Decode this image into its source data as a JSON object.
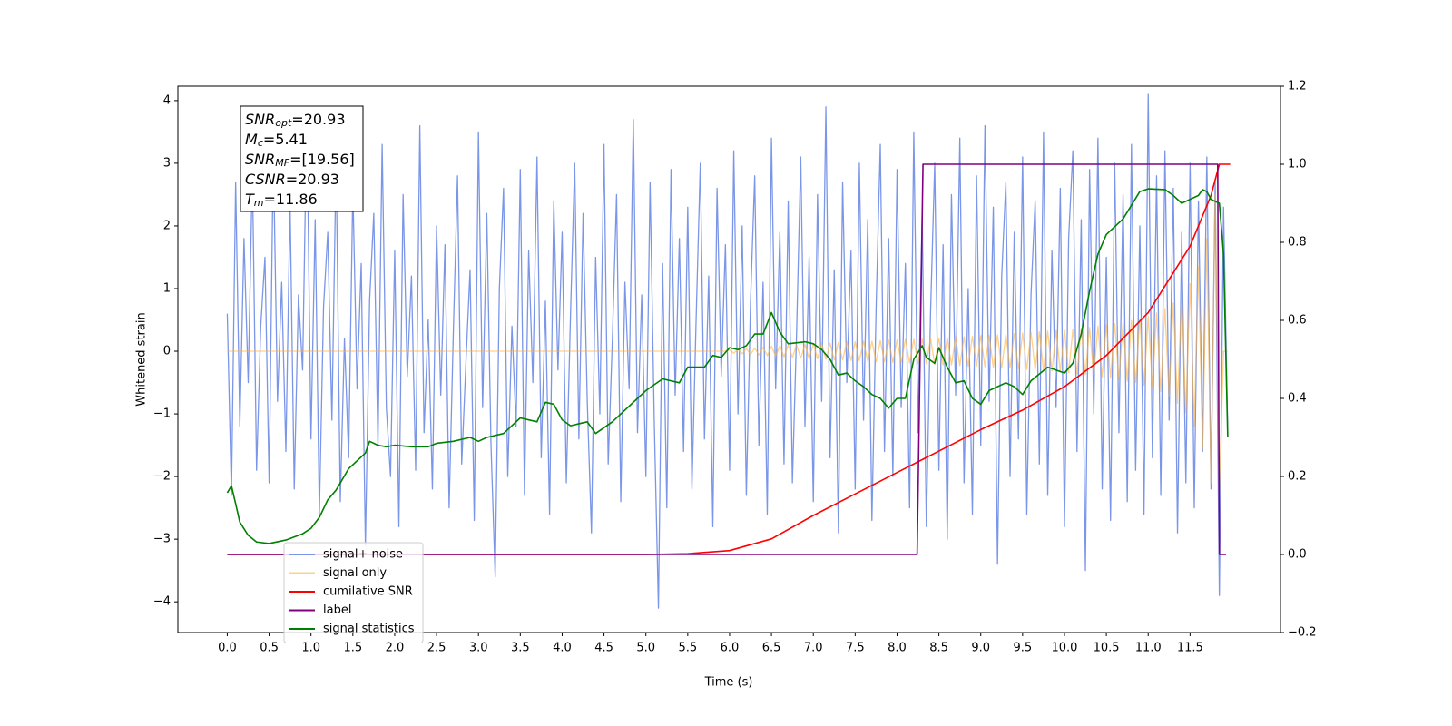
{
  "chart_data": {
    "type": "line",
    "xlabel": "Time (s)",
    "ylabel": "Whitened strain",
    "xlim": [
      -0.59,
      12.58
    ],
    "ylim": [
      -4.49,
      4.23
    ],
    "y2lim": [
      -0.2,
      1.2
    ],
    "xticks": [
      {
        "value": 0,
        "label": "0.0"
      },
      0.5,
      {
        "value": 1,
        "label": "1.0"
      },
      1.5,
      {
        "value": 2,
        "label": "2.0"
      },
      2.5,
      {
        "value": 3,
        "label": "3.0"
      },
      3.5,
      {
        "value": 4,
        "label": "4.0"
      },
      4.5,
      {
        "value": 5,
        "label": "5.0"
      },
      5.5,
      {
        "value": 6,
        "label": "6.0"
      },
      6.5,
      {
        "value": 7,
        "label": "7.0"
      },
      7.5,
      {
        "value": 8,
        "label": "8.0"
      },
      8.5,
      {
        "value": 9,
        "label": "9.0"
      },
      9.5,
      {
        "value": 10,
        "label": "10.0"
      },
      10.5,
      {
        "value": 11,
        "label": "11.0"
      },
      11.5
    ],
    "yticks": [
      {
        "value": -4,
        "label": "−4"
      },
      {
        "value": -3,
        "label": "−3"
      },
      {
        "value": -2,
        "label": "−2"
      },
      {
        "value": -1,
        "label": "−1"
      },
      0,
      1,
      2,
      3,
      4
    ],
    "y2ticks": [
      {
        "value": -0.2,
        "label": "−0.2"
      },
      {
        "value": 0,
        "label": "0.0"
      },
      0.2,
      0.4,
      0.6,
      0.8,
      {
        "value": 1,
        "label": "1.0"
      },
      1.2
    ],
    "grid": false,
    "legend": "lower left",
    "annotations": [
      {
        "symbol": "SNR",
        "subscript": "opt",
        "value": "=20.93"
      },
      {
        "symbol": "M",
        "subscript": "c",
        "value": "=5.41"
      },
      {
        "symbol": "SNR",
        "subscript": "MF",
        "value": "=[19.56]"
      },
      {
        "symbol": "CSNR",
        "value": "=20.93"
      },
      {
        "symbol": "T",
        "subscript": "m",
        "value": "=11.86"
      }
    ],
    "x": [
      0,
      0.05,
      0.1,
      0.15,
      0.2,
      0.25,
      0.3,
      0.35,
      0.4,
      0.45,
      0.5,
      0.55,
      0.6,
      0.65,
      0.7,
      0.75,
      0.8,
      0.85,
      0.9,
      0.95,
      1,
      1.05,
      1.1,
      1.15,
      1.2,
      1.25,
      1.3,
      1.35,
      1.4,
      1.45,
      1.5,
      1.55,
      1.6,
      1.65,
      1.7,
      1.75,
      1.8,
      1.85,
      1.9,
      1.95,
      2,
      2.05,
      2.1,
      2.15,
      2.2,
      2.25,
      2.3,
      2.35,
      2.4,
      2.45,
      2.5,
      2.55,
      2.6,
      2.65,
      2.7,
      2.75,
      2.8,
      2.85,
      2.9,
      2.95,
      3,
      3.05,
      3.1,
      3.15,
      3.2,
      3.25,
      3.3,
      3.35,
      3.4,
      3.45,
      3.5,
      3.55,
      3.6,
      3.65,
      3.7,
      3.75,
      3.8,
      3.85,
      3.9,
      3.95,
      4,
      4.05,
      4.1,
      4.15,
      4.2,
      4.25,
      4.3,
      4.35,
      4.4,
      4.45,
      4.5,
      4.55,
      4.6,
      4.65,
      4.7,
      4.75,
      4.8,
      4.85,
      4.9,
      4.95,
      5,
      5.05,
      5.1,
      5.15,
      5.2,
      5.25,
      5.3,
      5.35,
      5.4,
      5.45,
      5.5,
      5.55,
      5.6,
      5.65,
      5.7,
      5.75,
      5.8,
      5.85,
      5.9,
      5.95,
      6,
      6.05,
      6.1,
      6.15,
      6.2,
      6.25,
      6.3,
      6.35,
      6.4,
      6.45,
      6.5,
      6.55,
      6.6,
      6.65,
      6.7,
      6.75,
      6.8,
      6.85,
      6.9,
      6.95,
      7,
      7.05,
      7.1,
      7.15,
      7.2,
      7.25,
      7.3,
      7.35,
      7.4,
      7.45,
      7.5,
      7.55,
      7.6,
      7.65,
      7.7,
      7.75,
      7.8,
      7.85,
      7.9,
      7.95,
      8,
      8.05,
      8.1,
      8.15,
      8.2,
      8.25,
      8.3,
      8.35,
      8.4,
      8.45,
      8.5,
      8.55,
      8.6,
      8.65,
      8.7,
      8.75,
      8.8,
      8.85,
      8.9,
      8.95,
      9,
      9.05,
      9.1,
      9.15,
      9.2,
      9.25,
      9.3,
      9.35,
      9.4,
      9.45,
      9.5,
      9.55,
      9.6,
      9.65,
      9.7,
      9.75,
      9.8,
      9.85,
      9.9,
      9.95,
      10,
      10.05,
      10.1,
      10.15,
      10.2,
      10.25,
      10.3,
      10.35,
      10.4,
      10.45,
      10.5,
      10.55,
      10.6,
      10.65,
      10.7,
      10.75,
      10.8,
      10.85,
      10.9,
      10.95,
      11,
      11.05,
      11.1,
      11.15,
      11.2,
      11.25,
      11.3,
      11.35,
      11.4,
      11.45,
      11.5,
      11.55,
      11.6,
      11.65,
      11.7,
      11.75,
      11.8,
      11.85,
      11.9,
      11.95
    ],
    "series": [
      {
        "name": "signal+ noise",
        "color": "#7b96e8",
        "values": [
          0.6,
          -2.3,
          2.7,
          -1.2,
          1.8,
          -0.5,
          2.9,
          -1.9,
          0.4,
          1.5,
          -2.1,
          3.2,
          -0.8,
          1.1,
          -1.6,
          2.4,
          -2.2,
          0.9,
          -0.3,
          3.8,
          -1.4,
          2.1,
          -2.6,
          0.7,
          1.9,
          -1.1,
          3.1,
          -2.4,
          0.2,
          -1.7,
          2.6,
          -0.6,
          1.4,
          -3.1,
          0.8,
          2.2,
          -1.5,
          3.3,
          -0.9,
          -2.0,
          1.6,
          -2.8,
          2.5,
          -0.4,
          1.2,
          -1.9,
          3.6,
          -1.3,
          0.5,
          -2.2,
          2.0,
          -0.7,
          1.7,
          -2.5,
          0.3,
          2.8,
          -1.8,
          -0.2,
          1.3,
          -2.7,
          3.5,
          -0.9,
          2.2,
          -1.5,
          -3.6,
          1.0,
          2.6,
          -2.0,
          0.4,
          -1.2,
          2.9,
          -2.3,
          1.6,
          -0.5,
          3.1,
          -1.7,
          0.8,
          -2.6,
          2.4,
          -0.3,
          1.9,
          -2.1,
          0.6,
          3.0,
          -1.4,
          2.2,
          -0.8,
          -2.9,
          1.5,
          -1.0,
          3.3,
          -1.8,
          0.2,
          2.5,
          -2.4,
          1.1,
          -0.6,
          3.7,
          -1.3,
          0.9,
          -2.0,
          2.7,
          -1.1,
          -4.1,
          1.4,
          -2.5,
          2.9,
          -0.7,
          1.8,
          -1.6,
          2.3,
          -2.2,
          0.5,
          3.0,
          -1.4,
          1.2,
          -2.8,
          2.6,
          -0.4,
          1.7,
          -1.9,
          3.2,
          -1.0,
          2.0,
          -2.3,
          0.8,
          2.8,
          -1.5,
          1.1,
          -2.6,
          3.4,
          -0.6,
          1.9,
          -1.8,
          2.4,
          -2.1,
          0.3,
          3.1,
          -1.2,
          1.5,
          -2.4,
          2.5,
          -0.8,
          3.9,
          -1.7,
          1.3,
          -2.9,
          2.7,
          -0.5,
          1.6,
          -2.2,
          3.0,
          -1.1,
          2.1,
          -2.7,
          0.7,
          3.3,
          -1.6,
          1.8,
          -2.0,
          2.9,
          -0.9,
          1.4,
          -2.5,
          3.5,
          -1.3,
          2.2,
          -2.8,
          0.6,
          3.0,
          -1.9,
          1.7,
          -3.0,
          2.5,
          -0.7,
          3.4,
          -2.1,
          1.0,
          -2.6,
          2.8,
          -1.5,
          3.6,
          -0.8,
          2.3,
          -3.4,
          1.2,
          2.7,
          -2.0,
          1.9,
          -1.4,
          3.1,
          -2.6,
          0.9,
          2.4,
          -1.8,
          3.5,
          -2.3,
          1.6,
          -0.9,
          2.6,
          -2.8,
          1.8,
          3.2,
          -1.6,
          2.1,
          -3.5,
          2.9,
          -1.0,
          3.4,
          -2.2,
          1.5,
          -2.7,
          3.0,
          -1.3,
          2.5,
          -2.4,
          3.3,
          -1.9,
          2.0,
          -2.6,
          4.1,
          -1.7,
          2.8,
          -2.3,
          3.2,
          -1.1,
          2.6,
          -2.9,
          1.9,
          -2.1,
          3.0,
          -2.5,
          2.4,
          -1.6,
          3.1,
          -2.2,
          2.7,
          -3.9,
          2.3,
          -1.3
        ]
      },
      {
        "name": "signal only",
        "color": "#ffb03b",
        "values": [
          0,
          0,
          0,
          0,
          0,
          0,
          0,
          0,
          0,
          0,
          0,
          0,
          0,
          0,
          0,
          0,
          0,
          0,
          0,
          0,
          0,
          0,
          0,
          0,
          0,
          0,
          0,
          0,
          0,
          0,
          0,
          0,
          0,
          0,
          0,
          0,
          0,
          0,
          0,
          0,
          0,
          0,
          0,
          0,
          0,
          0,
          0,
          0,
          0,
          0,
          0,
          0,
          0,
          0,
          0,
          0,
          0,
          0,
          0,
          0,
          0,
          0,
          0,
          0,
          0,
          0,
          0,
          0,
          0,
          0,
          0,
          0,
          0,
          0,
          0,
          0,
          0,
          0,
          0,
          0,
          0,
          0,
          0,
          0,
          0,
          0,
          0,
          0,
          0,
          0,
          0,
          0,
          0,
          0,
          0,
          0,
          0,
          0,
          0,
          0,
          0,
          0,
          0,
          0,
          0,
          0,
          0,
          0,
          0,
          0,
          0,
          0,
          0,
          0,
          0,
          0,
          0,
          0,
          0,
          0,
          0.02,
          -0.03,
          0.03,
          -0.04,
          0.04,
          -0.05,
          0.05,
          -0.06,
          0.06,
          -0.07,
          0.08,
          -0.08,
          0.09,
          -0.09,
          0.1,
          -0.1,
          0.1,
          -0.11,
          0.11,
          -0.12,
          0.12,
          -0.12,
          0.13,
          -0.13,
          0.13,
          -0.14,
          0.14,
          -0.14,
          0.15,
          -0.15,
          0.15,
          -0.15,
          0.16,
          -0.16,
          0.16,
          -0.17,
          0.17,
          -0.17,
          0.18,
          -0.18,
          0.18,
          -0.18,
          0.19,
          -0.19,
          0.19,
          -0.2,
          0.2,
          -0.2,
          0.21,
          -0.21,
          0.21,
          -0.22,
          0.22,
          -0.22,
          0.23,
          -0.23,
          0.23,
          -0.24,
          0.24,
          -0.24,
          0.25,
          -0.25,
          0.25,
          -0.26,
          0.26,
          -0.27,
          0.27,
          -0.27,
          0.28,
          -0.28,
          0.29,
          -0.29,
          0.3,
          -0.3,
          0.31,
          -0.31,
          0.32,
          -0.32,
          0.33,
          -0.33,
          0.34,
          -0.34,
          0.35,
          -0.36,
          0.37,
          -0.37,
          0.38,
          -0.39,
          0.4,
          -0.41,
          0.42,
          -0.43,
          0.44,
          -0.45,
          0.46,
          -0.48,
          0.49,
          -0.5,
          0.52,
          -0.54,
          0.56,
          -0.58,
          0.61,
          -0.64,
          0.68,
          -0.72,
          0.77,
          -0.83,
          0.9,
          -0.98,
          1.08,
          -1.2,
          1.35,
          -1.55,
          1.8,
          -2.1,
          2.5,
          -2.2,
          0,
          0
        ]
      },
      {
        "name": "cumilative SNR",
        "color": "#ff0000",
        "axis": "y2",
        "x": [
          0,
          5.0,
          5.5,
          6.0,
          6.5,
          7.0,
          7.5,
          8.0,
          8.5,
          9.0,
          9.5,
          10.0,
          10.5,
          11.0,
          11.5,
          11.75,
          11.85,
          11.98
        ],
        "values": [
          0,
          0,
          0.002,
          0.01,
          0.04,
          0.1,
          0.155,
          0.21,
          0.265,
          0.32,
          0.37,
          0.43,
          0.51,
          0.62,
          0.79,
          0.92,
          1.0,
          1.0
        ]
      },
      {
        "name": "label",
        "color": "#800080",
        "axis": "y2",
        "x": [
          0,
          8.24,
          8.31,
          11.83,
          11.85,
          11.93
        ],
        "values": [
          0,
          0,
          1,
          1,
          0,
          0
        ]
      },
      {
        "name": "signal statistics",
        "color": "#008000",
        "axis": "y2",
        "x": [
          0,
          0.05,
          0.1,
          0.15,
          0.25,
          0.35,
          0.5,
          0.7,
          0.9,
          1.0,
          1.1,
          1.2,
          1.3,
          1.45,
          1.55,
          1.65,
          1.7,
          1.8,
          1.9,
          2.0,
          2.2,
          2.4,
          2.5,
          2.7,
          2.9,
          3.0,
          3.1,
          3.3,
          3.4,
          3.5,
          3.7,
          3.8,
          3.9,
          4.0,
          4.1,
          4.3,
          4.4,
          4.6,
          4.7,
          4.9,
          5.0,
          5.2,
          5.4,
          5.5,
          5.7,
          5.8,
          5.9,
          6.0,
          6.1,
          6.2,
          6.3,
          6.4,
          6.5,
          6.6,
          6.7,
          6.9,
          7.0,
          7.1,
          7.2,
          7.3,
          7.4,
          7.5,
          7.6,
          7.7,
          7.8,
          7.9,
          8.0,
          8.1,
          8.2,
          8.3,
          8.35,
          8.45,
          8.5,
          8.6,
          8.7,
          8.8,
          8.9,
          9.0,
          9.1,
          9.3,
          9.4,
          9.5,
          9.6,
          9.8,
          10.0,
          10.1,
          10.2,
          10.3,
          10.4,
          10.5,
          10.7,
          10.8,
          10.9,
          11.0,
          11.2,
          11.3,
          11.4,
          11.5,
          11.6,
          11.65,
          11.7,
          11.75,
          11.85,
          11.9,
          11.95
        ],
        "values": [
          0.158,
          0.176,
          0.13,
          0.083,
          0.049,
          0.032,
          0.028,
          0.037,
          0.053,
          0.067,
          0.095,
          0.14,
          0.165,
          0.22,
          0.24,
          0.26,
          0.29,
          0.28,
          0.276,
          0.28,
          0.276,
          0.276,
          0.285,
          0.29,
          0.3,
          0.29,
          0.3,
          0.31,
          0.33,
          0.35,
          0.34,
          0.39,
          0.385,
          0.345,
          0.33,
          0.34,
          0.31,
          0.34,
          0.36,
          0.4,
          0.42,
          0.45,
          0.44,
          0.48,
          0.48,
          0.51,
          0.505,
          0.53,
          0.525,
          0.535,
          0.565,
          0.565,
          0.62,
          0.57,
          0.54,
          0.545,
          0.54,
          0.525,
          0.5,
          0.46,
          0.465,
          0.445,
          0.43,
          0.41,
          0.4,
          0.375,
          0.4,
          0.4,
          0.5,
          0.535,
          0.505,
          0.49,
          0.53,
          0.48,
          0.44,
          0.445,
          0.4,
          0.385,
          0.42,
          0.44,
          0.43,
          0.41,
          0.445,
          0.48,
          0.465,
          0.49,
          0.565,
          0.675,
          0.77,
          0.82,
          0.86,
          0.895,
          0.93,
          0.937,
          0.935,
          0.92,
          0.9,
          0.91,
          0.92,
          0.935,
          0.93,
          0.91,
          0.9,
          0.77,
          0.3
        ]
      }
    ]
  }
}
